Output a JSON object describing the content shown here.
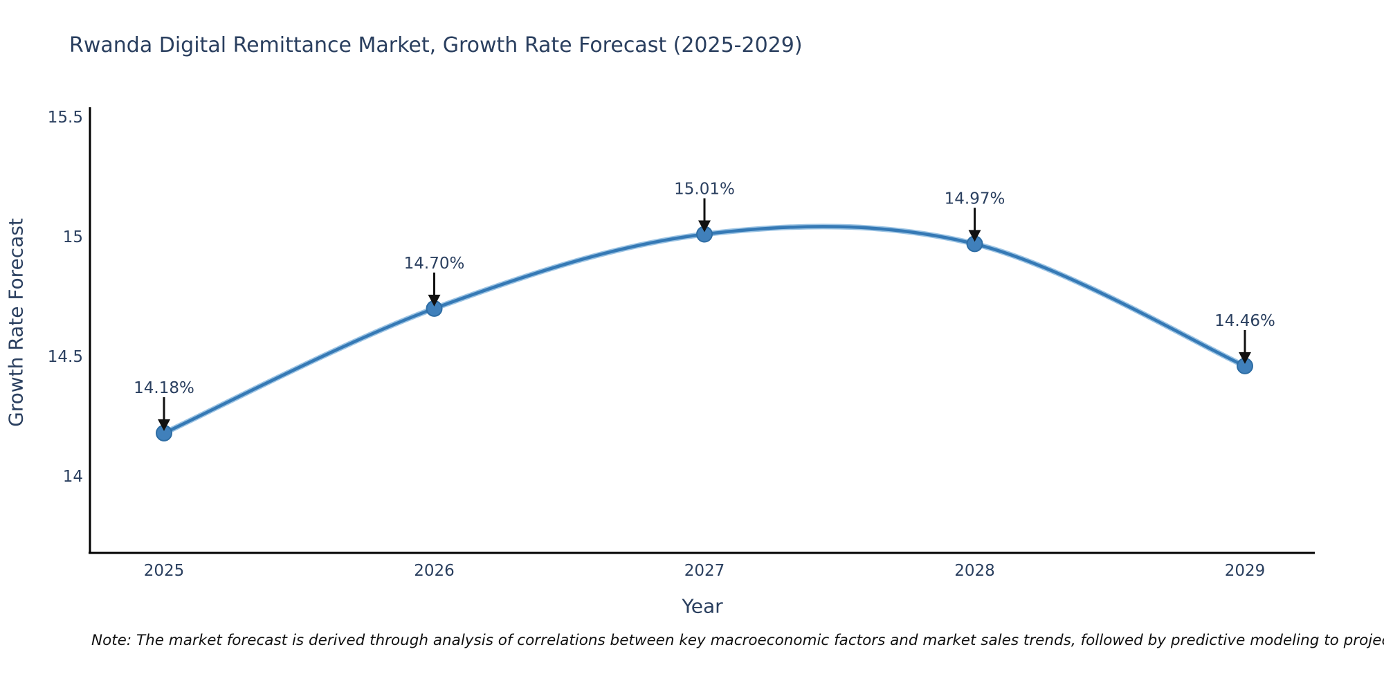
{
  "chart": {
    "title": "Rwanda Digital Remittance Market, Growth Rate Forecast (2025-2029)",
    "xlabel": "Year",
    "ylabel": "Growth Rate Forecast",
    "note": "Note: The market forecast is derived through analysis of correlations between key macroeconomic factors and market sales trends, followed by predictive modeling to project future sales"
  },
  "chart_data": {
    "type": "line",
    "title": "Rwanda Digital Remittance Market, Growth Rate Forecast (2025-2029)",
    "xlabel": "Year",
    "ylabel": "Growth Rate Forecast",
    "categories": [
      "2025",
      "2026",
      "2027",
      "2028",
      "2029"
    ],
    "series": [
      {
        "name": "Growth Rate Forecast",
        "values": [
          14.18,
          14.7,
          15.01,
          14.97,
          14.46
        ]
      }
    ],
    "point_labels": [
      "14.18%",
      "14.70%",
      "15.01%",
      "14.97%",
      "14.46%"
    ],
    "yticks": [
      14,
      14.5,
      15,
      15.5
    ],
    "ytick_labels": [
      "14",
      "14.5",
      "15",
      "15.5"
    ],
    "ylim": [
      13.68,
      15.54
    ],
    "grid": false,
    "legend_visible": false,
    "line_style": "spline",
    "annotation_style": "value labels with black down-arrows above each marker"
  },
  "colors": {
    "line": "#3579b5",
    "line_halo": "#9cc4e4",
    "marker_fill": "#4080bb",
    "marker_edge": "#2e6da4",
    "axis_line": "#000000",
    "chart_text": "#2a3f5f",
    "arrow": "#111111",
    "note_text": "#111111",
    "background": "#ffffff"
  }
}
